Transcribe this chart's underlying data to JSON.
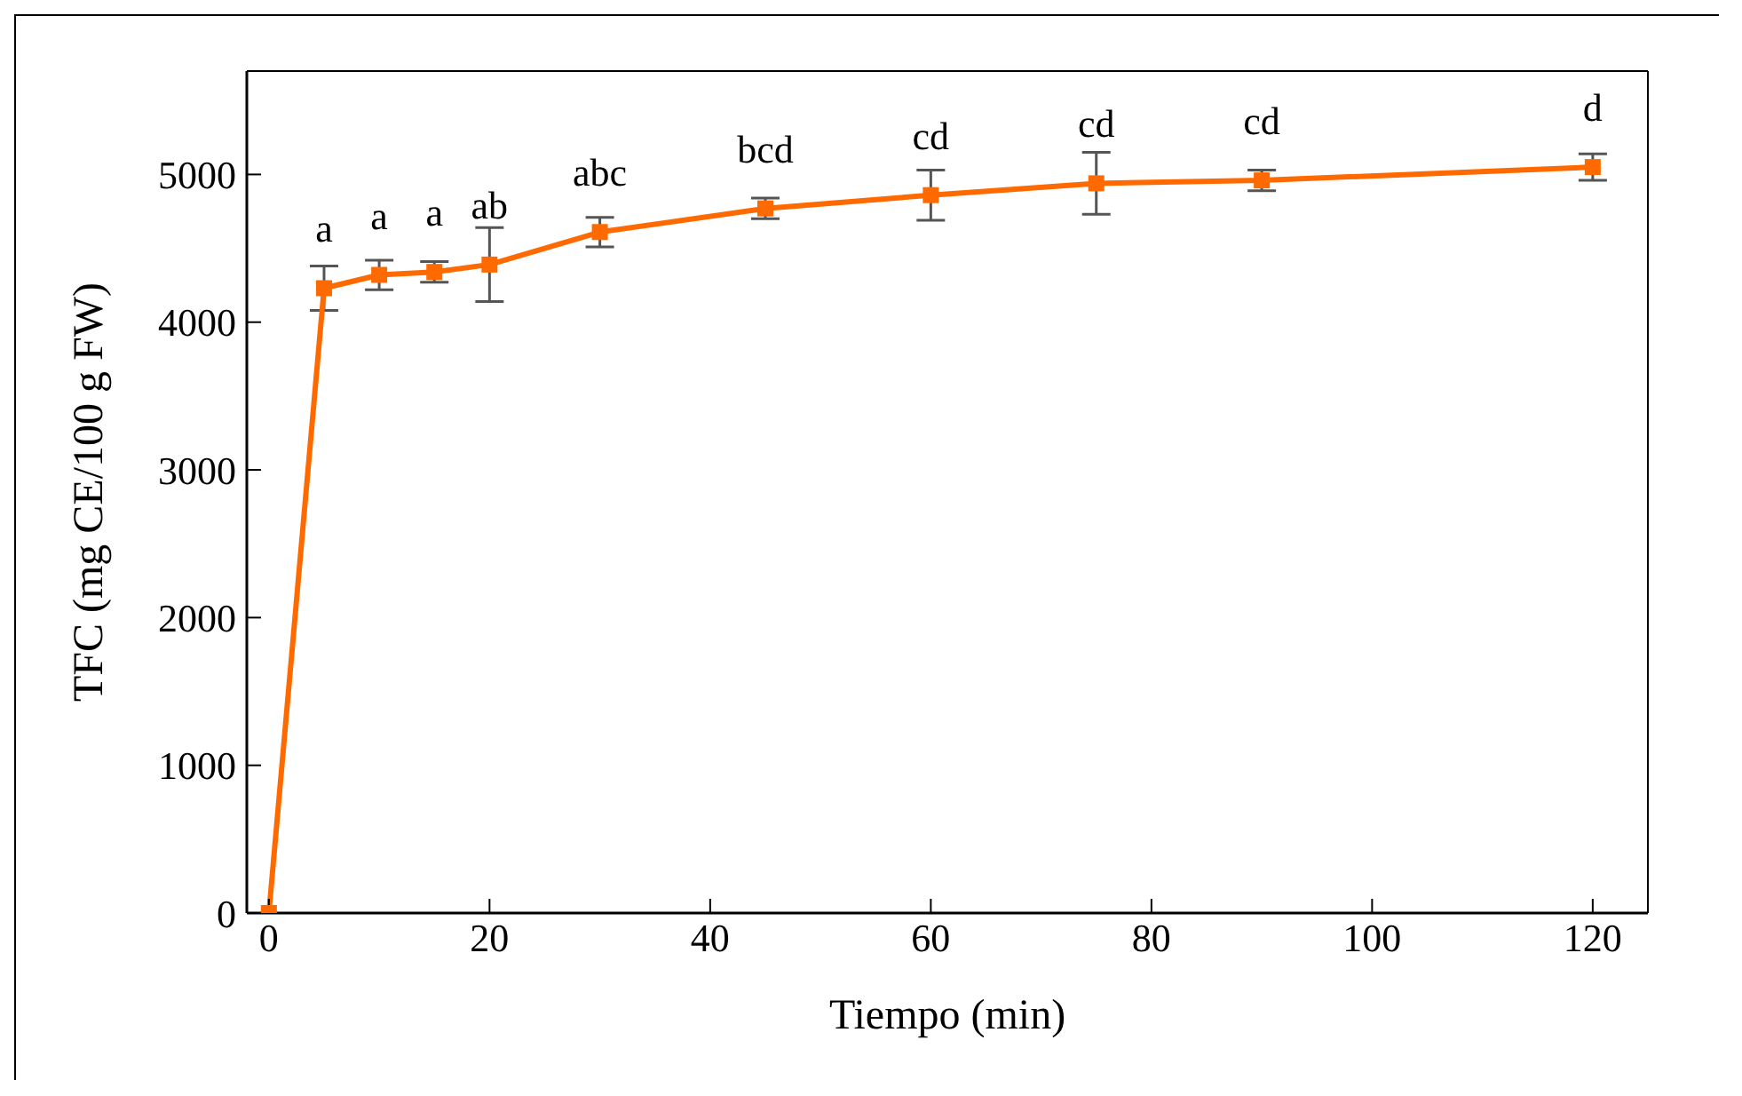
{
  "chart_data": {
    "type": "line",
    "xlabel": "Tiempo (min)",
    "ylabel": "TFC (mg CE/100 g FW)",
    "x": [
      0,
      5,
      10,
      15,
      20,
      30,
      45,
      60,
      75,
      90,
      120
    ],
    "series": [
      {
        "color": "#ff6a00",
        "values": [
          0,
          4230,
          4320,
          4340,
          4390,
          4610,
          4770,
          4860,
          4940,
          4960,
          5050
        ],
        "errors": [
          null,
          150,
          100,
          70,
          250,
          100,
          70,
          170,
          210,
          70,
          90
        ]
      }
    ],
    "xlim": [
      -2,
      125
    ],
    "xticks": [
      0,
      20,
      40,
      60,
      80,
      100,
      120
    ],
    "ylim": [
      0,
      5700
    ],
    "yticks": [
      0,
      1000,
      2000,
      3000,
      4000,
      5000
    ],
    "marker": "square",
    "line_style": "solid",
    "grid": false,
    "legend": false,
    "annotations": [
      {
        "text": "a",
        "x": 5,
        "y": 4230
      },
      {
        "text": "a",
        "x": 10,
        "y": 4320
      },
      {
        "text": "a",
        "x": 15,
        "y": 4340
      },
      {
        "text": "ab",
        "x": 20,
        "y": 4390
      },
      {
        "text": "abc",
        "x": 30,
        "y": 4610
      },
      {
        "text": "bcd",
        "x": 45,
        "y": 4770
      },
      {
        "text": "cd",
        "x": 60,
        "y": 4860
      },
      {
        "text": "cd",
        "x": 75,
        "y": 4940
      },
      {
        "text": "cd",
        "x": 90,
        "y": 4960
      },
      {
        "text": "d",
        "x": 120,
        "y": 5050
      }
    ]
  }
}
